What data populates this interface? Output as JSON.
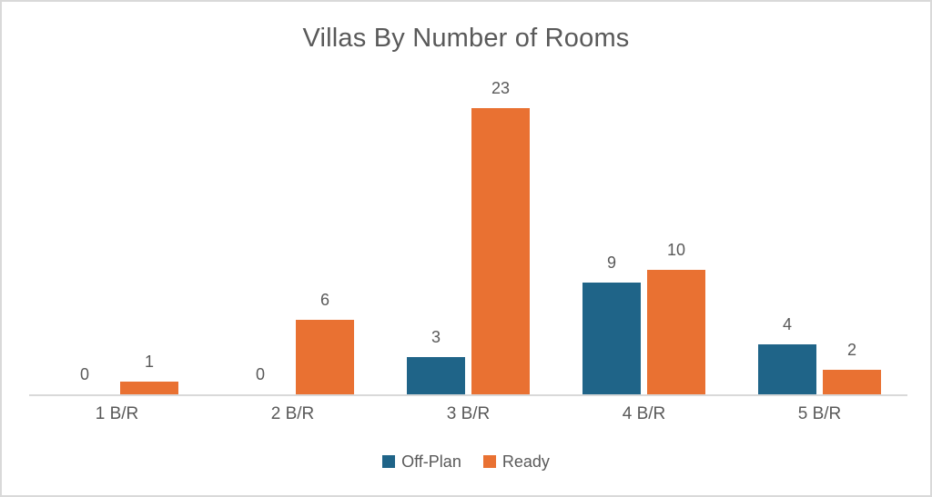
{
  "chart_data": {
    "type": "bar",
    "title": "Villas By Number of Rooms",
    "categories": [
      "1 B/R",
      "2 B/R",
      "3 B/R",
      "4 B/R",
      "5 B/R"
    ],
    "series": [
      {
        "name": "Off-Plan",
        "color": "#1F6488",
        "values": [
          0,
          0,
          3,
          9,
          4
        ]
      },
      {
        "name": "Ready",
        "color": "#E97132",
        "values": [
          1,
          6,
          23,
          10,
          2
        ]
      }
    ],
    "xlabel": "",
    "ylabel": "",
    "ylim": [
      0,
      25
    ],
    "grid": false,
    "data_labels": true,
    "legend_position": "bottom",
    "text_color": "#595959",
    "axis_line_color": "#D9D9D9",
    "background_color": "#FFFFFF",
    "border_color": "#D9D9D9"
  }
}
